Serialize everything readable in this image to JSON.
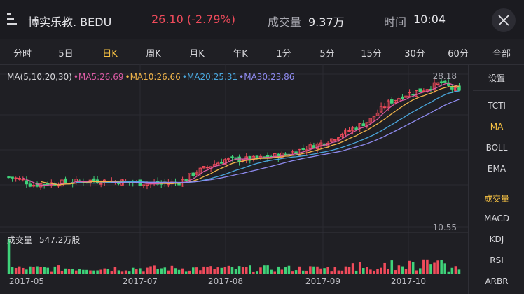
{
  "header": {
    "title": "博实乐教. BEDU",
    "price_change": "26.10 (-2.79%)",
    "volume_label": "成交量",
    "volume_value": "9.37万",
    "time_label": "时间",
    "time_value": "10:04"
  },
  "tabs": [
    "分时",
    "5日",
    "日K",
    "周K",
    "月K",
    "年K",
    "1分",
    "5分",
    "15分",
    "30分",
    "60分",
    "全部"
  ],
  "active_tab": "日K",
  "legend": {
    "params": "MA(5,10,20,30)",
    "ma5": "•MA5:26.69",
    "ma10": "•MA10:26.66",
    "ma20": "•MA20:25.31",
    "ma30": "•MA30:23.86"
  },
  "colors": {
    "up": "#f04b5b",
    "down": "#3fd37a",
    "ma5": "#d95ba3",
    "ma10": "#f0b44a",
    "ma20": "#4aa6dc",
    "ma30": "#8f8bf0",
    "accent": "#f5c043"
  },
  "axis": {
    "max_label": "28.18",
    "min_label": "10.55"
  },
  "volume": {
    "label": "成交量",
    "value": "547.2万股"
  },
  "dates": [
    "2017-05",
    "2017-07",
    "2017-08",
    "2017-09",
    "2017-10"
  ],
  "side_menu": {
    "settings": "设置",
    "main_indicators": [
      "TCTI",
      "MA",
      "BOLL",
      "EMA"
    ],
    "sub_indicators": [
      "成交量",
      "MACD",
      "KDJ",
      "RSI",
      "ARBR"
    ]
  },
  "chart_data": {
    "type": "candlestick",
    "y_range": [
      10.55,
      28.18
    ],
    "x_labels": [
      "2017-05",
      "2017-07",
      "2017-08",
      "2017-09",
      "2017-10"
    ],
    "latest": {
      "price": 26.1,
      "change_pct": -2.79,
      "MA5": 26.69,
      "MA10": 26.66,
      "MA20": 25.31,
      "MA30": 23.86
    },
    "volume_latest": "547.2万股"
  }
}
